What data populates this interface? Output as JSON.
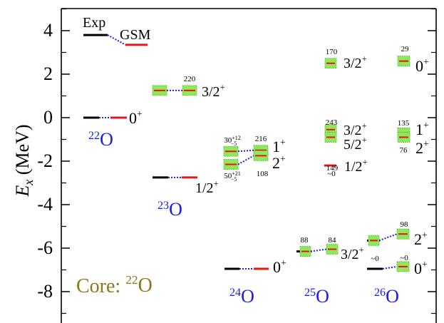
{
  "chart_data": {
    "type": "level-scheme",
    "ylabel": "E",
    "ylabel_sub": "x",
    "ylabel_unit": "(MeV)",
    "ylim": [
      -9.5,
      5
    ],
    "yticks": [
      "4",
      "2",
      "0",
      "-2",
      "-4",
      "-6",
      "-8"
    ],
    "legend": {
      "exp": "Exp",
      "gsm": "GSM"
    },
    "core_label": {
      "prefix": "Core: ",
      "mass": "22",
      "sym": "O"
    },
    "colors": {
      "exp": "#000000",
      "gsm": "#e8141c",
      "ci_fill": "#90e858",
      "ci_edge": "#50c040",
      "nucleus": "#1a1aee",
      "core": "#8a7a18",
      "connector": "#2020dd"
    },
    "nuclei": [
      {
        "mass": "22",
        "sym": "O"
      },
      {
        "mass": "23",
        "sym": "O"
      },
      {
        "mass": "24",
        "sym": "O"
      },
      {
        "mass": "25",
        "sym": "O"
      },
      {
        "mass": "26",
        "sym": "O"
      }
    ],
    "levels": [
      {
        "nucleus": "22O",
        "jpi": "0+",
        "exp": 0,
        "gsm": 0
      },
      {
        "nucleus": "22O",
        "jpi": "legend",
        "exp": 3.8,
        "gsm": 3.35
      },
      {
        "nucleus": "23O",
        "jpi": "3/2+",
        "ci": 1.25,
        "gsm": 1.25,
        "width": "220"
      },
      {
        "nucleus": "23O",
        "jpi": "1/2+",
        "exp": -2.75,
        "gsm": -2.75
      },
      {
        "nucleus": "24O",
        "jpi": "1+",
        "exp": -1.55,
        "gsm": -1.5,
        "width": "216",
        "exp_width": "30+12−5"
      },
      {
        "nucleus": "24O",
        "jpi": "2+",
        "exp": -2.15,
        "gsm": -1.75,
        "width": "108",
        "exp_width": "50+21−5"
      },
      {
        "nucleus": "24O",
        "jpi": "0+",
        "exp": -6.95,
        "gsm": -6.95
      },
      {
        "nucleus": "25O",
        "jpi": "3/2+",
        "exp": -6.15,
        "gsm": -6.05,
        "exp_width": "88",
        "width": "84"
      },
      {
        "nucleus": "26O",
        "jpi": "3/2+",
        "gsm": 2.5,
        "width": "170"
      },
      {
        "nucleus": "26O",
        "jpi": "3/2+",
        "gsm": -0.55,
        "width": "243"
      },
      {
        "nucleus": "26O",
        "jpi": "5/2+",
        "gsm": -0.9,
        "width": "149"
      },
      {
        "nucleus": "26O",
        "jpi": "1/2+",
        "gsm": -2.2,
        "width": "~0"
      },
      {
        "nucleus": "26O",
        "jpi": "0+",
        "gsm": 2.6,
        "width": "29"
      },
      {
        "nucleus": "26O",
        "jpi": "1+",
        "gsm": -0.7,
        "width": "135"
      },
      {
        "nucleus": "26O",
        "jpi": "2+",
        "gsm": -0.9,
        "width": "76"
      },
      {
        "nucleus": "26O",
        "jpi": "2+",
        "exp": -5.65,
        "gsm": -5.35,
        "width": "98"
      },
      {
        "nucleus": "26O",
        "jpi": "0+",
        "exp": -6.95,
        "gsm": -6.85,
        "exp_width": "~0",
        "width": "~0"
      }
    ]
  }
}
